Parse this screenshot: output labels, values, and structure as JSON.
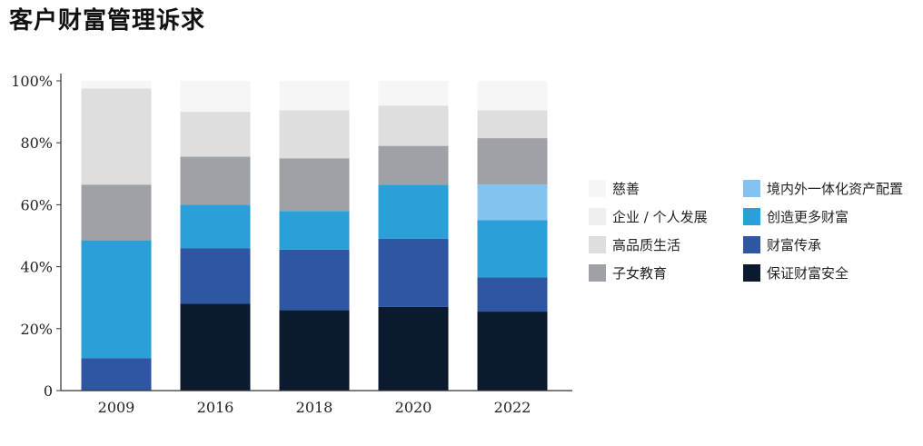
{
  "title": "客户财富管理诉求",
  "chart_data": {
    "type": "bar",
    "stacked": true,
    "categories": [
      "2009",
      "2016",
      "2018",
      "2020",
      "2022"
    ],
    "ylim": [
      0,
      100
    ],
    "yticks": [
      0,
      20,
      40,
      60,
      80,
      100
    ],
    "ytick_labels": [
      "0",
      "20%",
      "40%",
      "60%",
      "80%",
      "100%"
    ],
    "series": [
      {
        "name": "保证财富安全",
        "color": "#0b1a2e",
        "values": [
          0,
          28,
          26,
          27,
          25.5
        ]
      },
      {
        "name": "财富传承",
        "color": "#2f56a3",
        "values": [
          10.5,
          18,
          19.5,
          22,
          11
        ]
      },
      {
        "name": "创造更多财富",
        "color": "#2b9fd8",
        "values": [
          38,
          14,
          12.5,
          17.5,
          18.5
        ]
      },
      {
        "name": "境内外一体化资产配置",
        "color": "#82c4ef",
        "values": [
          0,
          0,
          0,
          0,
          11.5
        ]
      },
      {
        "name": "子女教育",
        "color": "#9ea1a6",
        "values": [
          18,
          15.5,
          17,
          12.5,
          15
        ]
      },
      {
        "name": "高品质生活",
        "color": "#dedede",
        "values": [
          31,
          14.5,
          15.5,
          13,
          9
        ]
      },
      {
        "name": "企业/个人发展",
        "color": "#efefef",
        "values": [
          0,
          0,
          0,
          0,
          0
        ]
      },
      {
        "name": "慈善",
        "color": "#f6f6f6",
        "values": [
          2.5,
          10,
          9.5,
          8,
          9.5
        ]
      }
    ],
    "legend": {
      "position": "right",
      "left_column": [
        "慈善",
        "企业 / 个人发展",
        "高品质生活",
        "子女教育"
      ],
      "right_column": [
        "境内外一体化资产配置",
        "创造更多财富",
        "财富传承",
        "保证财富安全"
      ],
      "left_colors": [
        "#f6f6f6",
        "#efefef",
        "#dedede",
        "#9ea1a6"
      ],
      "right_colors": [
        "#82c4ef",
        "#2b9fd8",
        "#2f56a3",
        "#0b1a2e"
      ]
    }
  }
}
